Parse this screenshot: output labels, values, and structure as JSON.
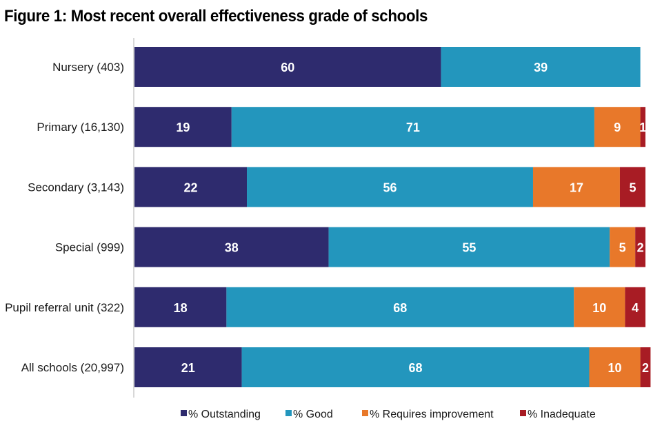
{
  "chart_data": {
    "type": "bar",
    "orientation": "horizontal",
    "stacked": true,
    "title": "Figure 1: Most recent overall effectiveness grade of schools",
    "xlabel": "",
    "ylabel": "",
    "xlim": [
      0,
      100
    ],
    "grid": false,
    "legend_position": "bottom",
    "categories": [
      "Nursery (403)",
      "Primary (16,130)",
      "Secondary (3,143)",
      "Special (999)",
      "Pupil referral unit (322)",
      "All schools (20,997)"
    ],
    "series": [
      {
        "name": "% Outstanding",
        "color": "#2e2b6e",
        "values": [
          60,
          19,
          22,
          38,
          18,
          21
        ]
      },
      {
        "name": "% Good",
        "color": "#2396bd",
        "values": [
          39,
          71,
          56,
          55,
          68,
          68
        ]
      },
      {
        "name": "% Requires improvement",
        "color": "#e8782a",
        "values": [
          0,
          9,
          17,
          5,
          10,
          10
        ]
      },
      {
        "name": "% Inadequate",
        "color": "#a81c24",
        "values": [
          0,
          1,
          5,
          2,
          4,
          2
        ]
      }
    ]
  }
}
